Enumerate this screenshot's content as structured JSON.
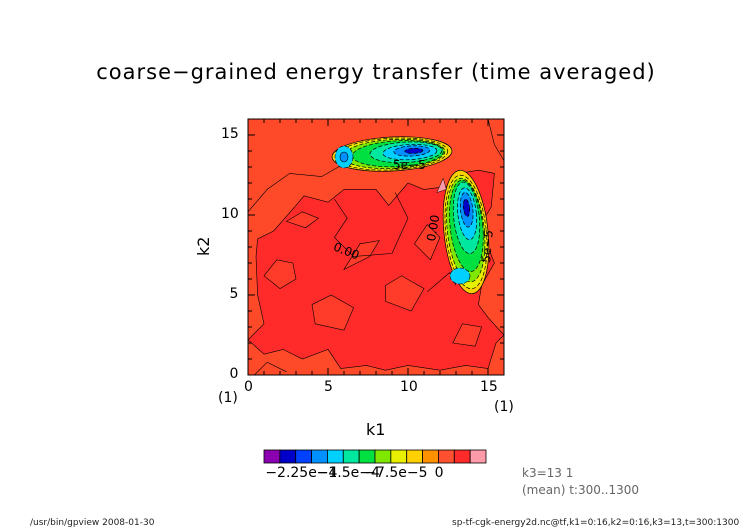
{
  "chart_data": {
    "type": "heatmap",
    "title": "coarse−grained energy transfer (time averaged)",
    "xlabel": "k1",
    "ylabel": "k2",
    "xlim": [
      0,
      16
    ],
    "ylim": [
      0,
      16
    ],
    "x_ticks": [
      "0",
      "5",
      "10",
      "15"
    ],
    "y_ticks": [
      "0",
      "5",
      "10",
      "15"
    ],
    "x_unit": "(1)",
    "y_unit": "(1)",
    "contour_labels": [
      "5e−5",
      "0.00",
      "0.00",
      "5e−5"
    ],
    "colorbar": {
      "tick_labels": [
        "−2.25e−4",
        "−1.5e−4",
        "−7.5e−5",
        "0"
      ],
      "colors": [
        "#8b00b0",
        "#0000c8",
        "#0040ff",
        "#0090ff",
        "#00d0ff",
        "#00e8a0",
        "#00e040",
        "#80e800",
        "#e8f000",
        "#ffd000",
        "#ff9000",
        "#ff5030",
        "#ff2a2a",
        "#ff9aa8"
      ]
    },
    "background_color": "#ff4a2a",
    "regions": [
      {
        "name": "lower-left near-zero region",
        "color": "#ff2a2a"
      },
      {
        "name": "negative lobe horizontal",
        "center": [
          10,
          14
        ],
        "min_value": -0.000225
      },
      {
        "name": "negative lobe vertical",
        "center": [
          14,
          10.5
        ],
        "min_value": -0.000225
      }
    ]
  },
  "annotations": {
    "k3": "k3=13 1",
    "mean": "(mean) t:300..1300"
  },
  "footer": {
    "left": "/usr/bin/gpview   2008-01-30",
    "right": "sp-tf-cgk-energy2d.nc@tf,k1=0:16,k2=0:16,k3=13,t=300:1300"
  }
}
